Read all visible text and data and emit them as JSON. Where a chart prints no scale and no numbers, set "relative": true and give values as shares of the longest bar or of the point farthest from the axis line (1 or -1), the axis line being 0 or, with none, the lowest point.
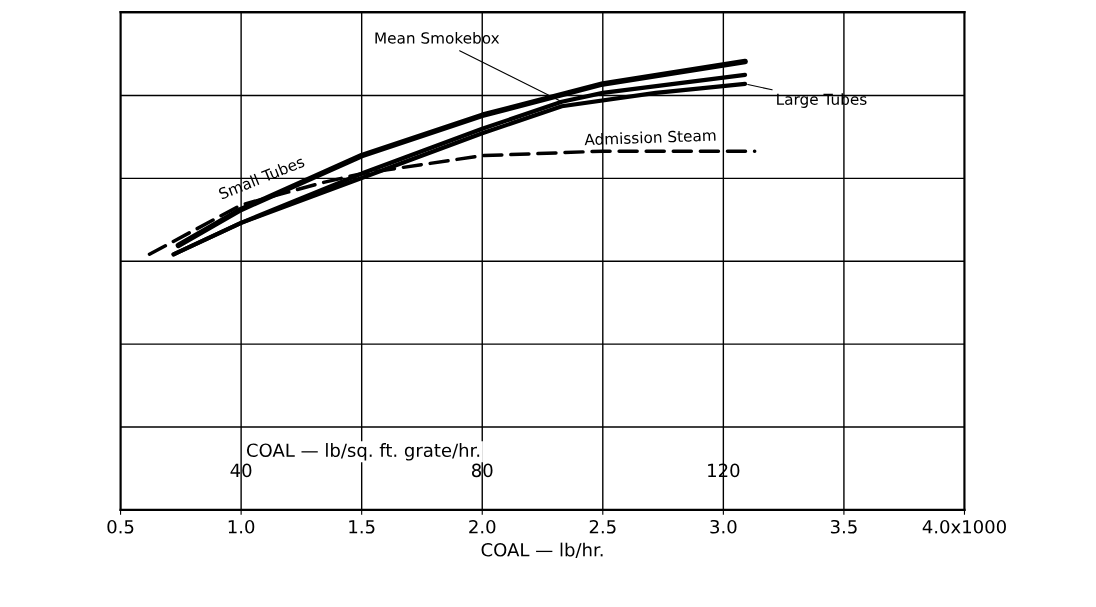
{
  "chart_data": {
    "type": "line",
    "relative": true,
    "xlabel": "COAL — lb/hr.",
    "x2label": "COAL — lb/sq. ft. grate/hr.",
    "xlim": [
      0.5,
      4.0
    ],
    "xticks": [
      {
        "value": 0.5,
        "label": "0.5"
      },
      {
        "value": 1.0,
        "label": "1.0"
      },
      {
        "value": 1.5,
        "label": "1.5"
      },
      {
        "value": 2.0,
        "label": "2.0"
      },
      {
        "value": 2.5,
        "label": "2.5"
      },
      {
        "value": 3.0,
        "label": "3.0"
      },
      {
        "value": 3.5,
        "label": "3.5"
      },
      {
        "value": 4.0,
        "label": "4.0x1000"
      }
    ],
    "x2lim": [
      20,
      160
    ],
    "x2ticks": [
      40,
      80,
      120
    ],
    "tick_labels": "x",
    "grid": true,
    "series": [
      {
        "name": "Small Tubes",
        "color": "#000000",
        "line_style": "solid",
        "x": [
          0.74,
          1.0,
          1.5,
          2.0,
          2.5,
          3.09
        ],
        "values": [
          0.59,
          0.67,
          0.79,
          0.88,
          0.95,
          1.0
        ]
      },
      {
        "name": "Mean Smokebox",
        "color": "#000000",
        "line_style": "solid",
        "x": [
          0.72,
          1.0,
          1.5,
          2.0,
          2.33,
          2.5,
          3.09
        ],
        "values": [
          0.57,
          0.64,
          0.75,
          0.85,
          0.91,
          0.93,
          0.97
        ]
      },
      {
        "name": "Large Tubes",
        "color": "#000000",
        "line_style": "solid",
        "x": [
          0.72,
          1.0,
          1.5,
          2.0,
          2.33,
          2.72,
          3.09
        ],
        "values": [
          0.57,
          0.64,
          0.74,
          0.84,
          0.9,
          0.93,
          0.95
        ]
      },
      {
        "name": "Admission Steam",
        "color": "#000000",
        "line_style": "dashed",
        "x": [
          0.62,
          1.0,
          1.34,
          1.5,
          2.0,
          2.5,
          3.13
        ],
        "values": [
          0.57,
          0.68,
          0.73,
          0.75,
          0.79,
          0.8,
          0.8
        ]
      }
    ]
  }
}
